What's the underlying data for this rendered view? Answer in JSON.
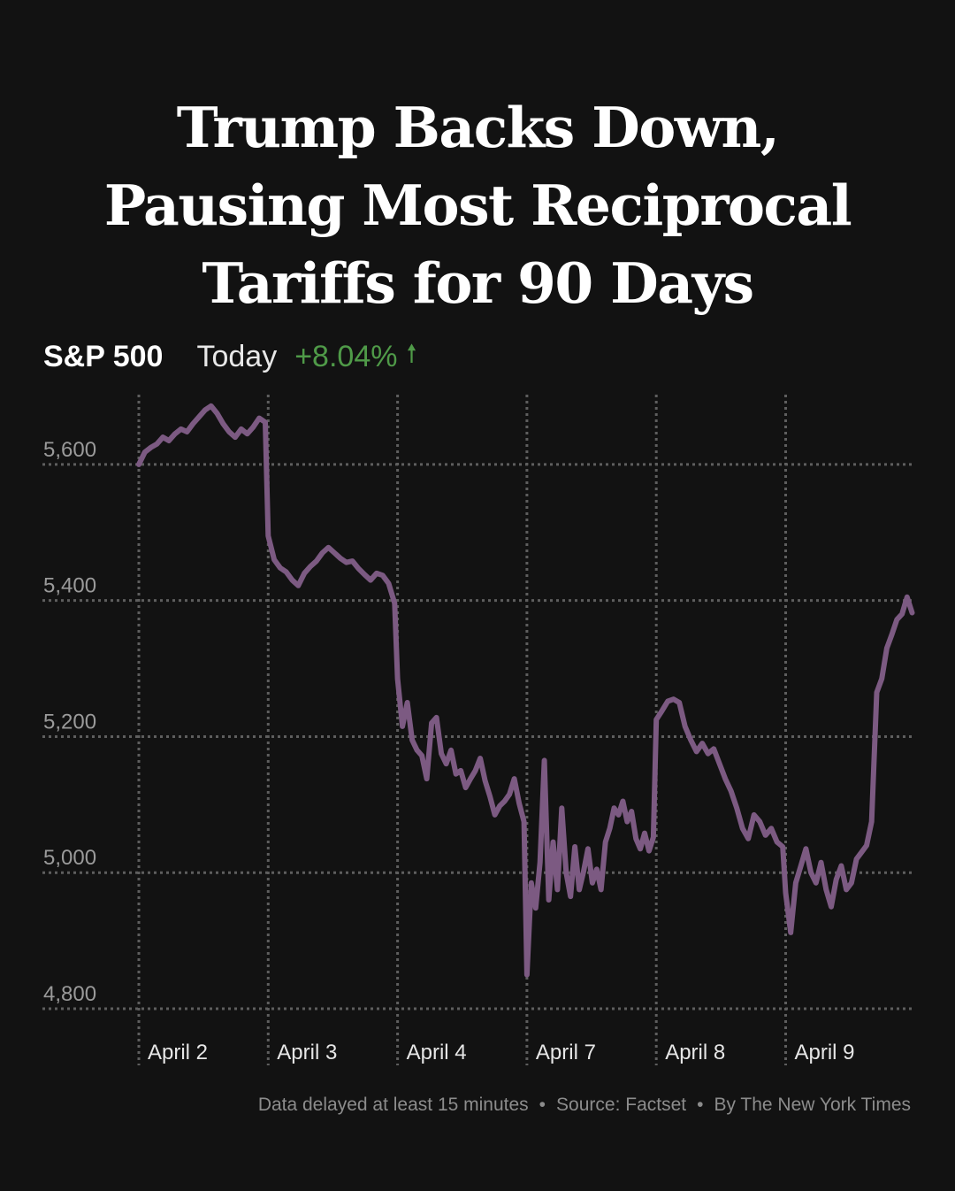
{
  "headline": "Trump Backs Down, Pausing Most Reciprocal Tariffs for 90 Days",
  "ticker": {
    "name": "S&P 500",
    "period": "Today",
    "change": "+8.04%",
    "direction_icon": "up-arrow-icon"
  },
  "colors": {
    "background": "#121212",
    "line": "#7c5a82",
    "positive": "#4f9a48",
    "grid": "#5e5e5e",
    "tick_text": "#9a9a9a"
  },
  "chart_data": {
    "type": "line",
    "title": "S&P 500",
    "xlabel": "",
    "ylabel": "",
    "ylim": [
      4800,
      5700
    ],
    "yticks": [
      4800,
      5000,
      5200,
      5400,
      5600
    ],
    "ytick_labels": [
      "4,800",
      "5,000",
      "5,200",
      "5,400",
      "5,600"
    ],
    "categories": [
      "April 2",
      "April 3",
      "April 4",
      "April 7",
      "April 8",
      "April 9"
    ],
    "grid": true,
    "series": [
      {
        "name": "S&P 500",
        "days": [
          [
            5600,
            5618,
            5625,
            5630,
            5640,
            5635,
            5645,
            5652,
            5648,
            5660,
            5670,
            5680,
            5686,
            5675,
            5660,
            5648,
            5640,
            5652,
            5645,
            5655,
            5668,
            5662
          ],
          [
            5495,
            5460,
            5448,
            5442,
            5430,
            5422,
            5440,
            5450,
            5458,
            5470,
            5478,
            5470,
            5462,
            5456,
            5458,
            5447,
            5438,
            5430,
            5440,
            5437,
            5425,
            5396
          ],
          [
            5285,
            5215,
            5250,
            5195,
            5180,
            5172,
            5138,
            5220,
            5228,
            5175,
            5160,
            5180,
            5145,
            5150,
            5125,
            5138,
            5150,
            5168,
            5135,
            5112,
            5085,
            5098,
            5105,
            5115,
            5138,
            5102,
            5075
          ],
          [
            4850,
            4985,
            4948,
            5015,
            5165,
            4960,
            5045,
            4975,
            5095,
            5000,
            4965,
            5038,
            4975,
            5002,
            5035,
            4985,
            5005,
            4975,
            5045,
            5065,
            5095,
            5085,
            5105,
            5075,
            5090,
            5050,
            5035,
            5058,
            5032,
            5052
          ],
          [
            5225,
            5238,
            5252,
            5255,
            5250,
            5215,
            5195,
            5178,
            5190,
            5175,
            5182,
            5160,
            5138,
            5120,
            5095,
            5065,
            5050,
            5085,
            5075,
            5055,
            5065,
            5045,
            5038
          ],
          [
            4970,
            4912,
            4985,
            5010,
            5035,
            5000,
            4985,
            5015,
            4975,
            4950,
            4990,
            5010,
            4975,
            4985,
            5020,
            5030,
            5040,
            5075,
            5265,
            5285,
            5330,
            5350,
            5372,
            5380,
            5405,
            5382
          ]
        ]
      }
    ]
  },
  "footer": {
    "delay": "Data delayed at least 15 minutes",
    "source": "Source: Factset",
    "credit": "By The New York Times"
  }
}
